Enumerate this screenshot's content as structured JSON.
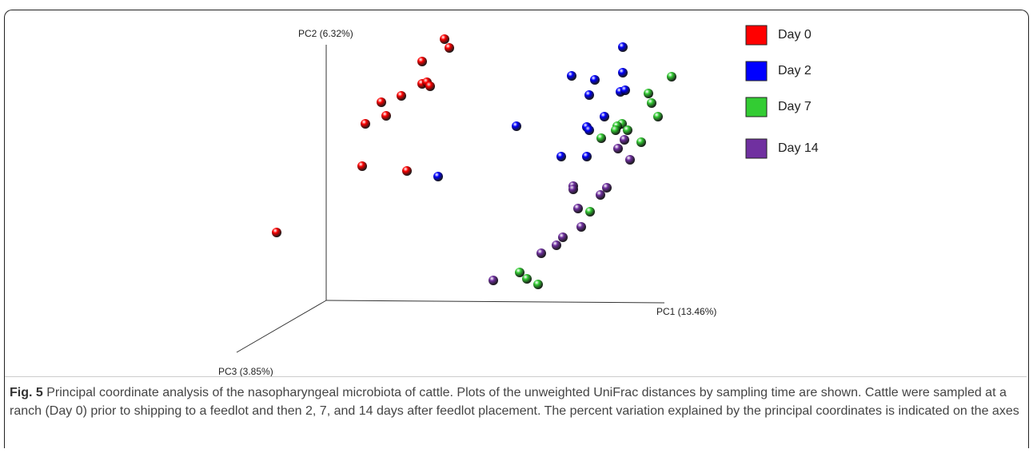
{
  "chart_data": {
    "type": "scatter3d",
    "x_label": "PC1 (13.46%)",
    "y_label": "PC2 (6.32%)",
    "z_label": "PC3 (3.85%)",
    "series": [
      {
        "name": "Day 0",
        "color": "#ff0000",
        "x": [
          148,
          154,
          120,
          120,
          126,
          130,
          94,
          69,
          75,
          49,
          45,
          101,
          -62
        ],
        "y": [
          327,
          316,
          299,
          271,
          273,
          268,
          256,
          248,
          231,
          221,
          168,
          162,
          85
        ]
      },
      {
        "name": "Day 2",
        "color": "#0000ff",
        "x": [
          371,
          371,
          307,
          336,
          368,
          374,
          329,
          348,
          238,
          326,
          329,
          294,
          326,
          140
        ],
        "y": [
          317,
          285,
          281,
          276,
          261,
          263,
          257,
          230,
          218,
          217,
          213,
          180,
          180,
          155
        ]
      },
      {
        "name": "Day 7",
        "color": "#33cc33",
        "x": [
          432,
          403,
          407,
          415,
          370,
          364,
          362,
          377,
          344,
          394,
          330,
          242,
          251,
          265
        ],
        "y": [
          280,
          259,
          247,
          230,
          221,
          218,
          213,
          213,
          203,
          198,
          111,
          35,
          27,
          20
        ]
      },
      {
        "name": "Day 14",
        "color": "#7030a0",
        "x": [
          373,
          365,
          380,
          309,
          309,
          351,
          343,
          315,
          319,
          296,
          288,
          269,
          209
        ],
        "y": [
          201,
          190,
          176,
          143,
          139,
          141,
          132,
          115,
          92,
          79,
          69,
          59,
          25
        ]
      }
    ]
  },
  "caption": {
    "label": "Fig. 5",
    "text": "Principal coordinate analysis of the nasopharyngeal microbiota of cattle. Plots of the unweighted UniFrac distances by sampling time are shown. Cattle were sampled at a ranch (Day 0) prior to shipping to a feedlot and then 2, 7, and 14 days after feedlot placement. The percent variation explained by the principal coordinates is indicated on the axes"
  }
}
